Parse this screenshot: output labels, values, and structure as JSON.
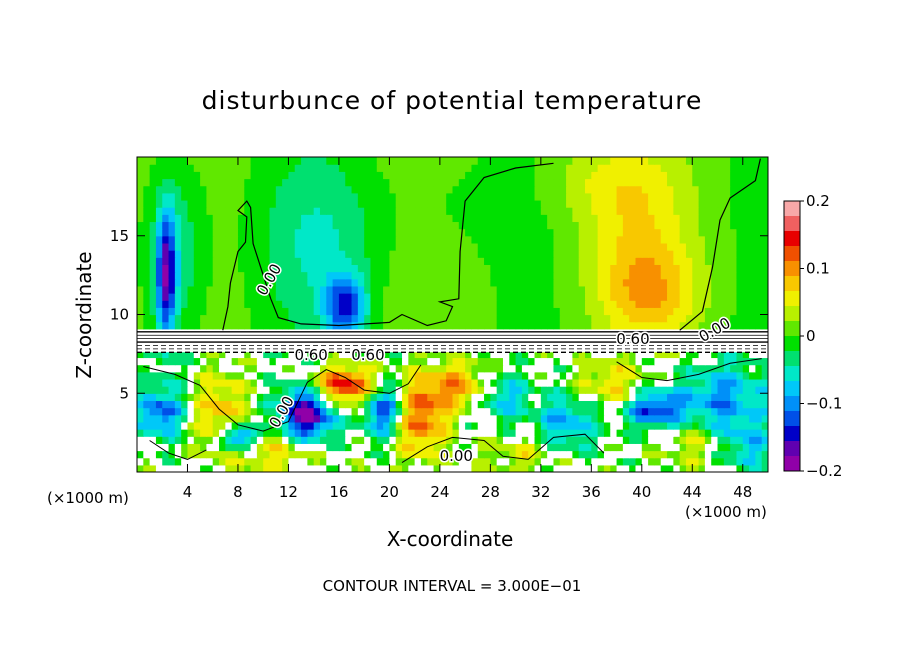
{
  "chart_data": {
    "type": "heatmap",
    "title": "disturbunce of potential temperature",
    "xlabel": "X-coordinate",
    "ylabel": "Z-coordinate",
    "x_unit": "(×1000 m)",
    "y_unit": "(×1000 m)",
    "xlim": [
      0,
      50
    ],
    "ylim": [
      0,
      20
    ],
    "x_ticks": [
      4,
      8,
      12,
      16,
      20,
      24,
      28,
      32,
      36,
      40,
      44,
      48
    ],
    "y_ticks": [
      5,
      10,
      15
    ],
    "colorbar": {
      "min": -0.2,
      "max": 0.2,
      "ticks": [
        0.2,
        0.1,
        0,
        -0.1,
        -0.2
      ],
      "tick_labels": [
        "0.2",
        "0.1",
        "0",
        "−0.1",
        "−0.2"
      ],
      "colors": [
        "#f8a8a8",
        "#f06060",
        "#e80000",
        "#f05000",
        "#f89000",
        "#f8c800",
        "#f0f000",
        "#b8f000",
        "#60e800",
        "#00e000",
        "#00e070",
        "#00e8c8",
        "#00c8f8",
        "#0090f8",
        "#0050e8",
        "#0000c8",
        "#6000b0",
        "#9000a8"
      ]
    },
    "contour_interval_text": "CONTOUR INTERVAL = 3.000E−01",
    "contour_labels": [
      {
        "text": "0.00",
        "x": 10.5,
        "z": 12.2,
        "angle": -60
      },
      {
        "text": "0.60",
        "x": 13.8,
        "z": 7.4
      },
      {
        "text": "0.60",
        "x": 18.3,
        "z": 7.4
      },
      {
        "text": "0.60",
        "x": 39.3,
        "z": 8.4
      },
      {
        "text": "0.00",
        "x": 11.5,
        "z": 3.8,
        "angle": -60
      },
      {
        "text": "0.00",
        "x": 25.3,
        "z": 1.0
      },
      {
        "text": "0.00",
        "x": 45.8,
        "z": 9.0,
        "angle": -30
      }
    ],
    "blobs": [
      {
        "x": 2.3,
        "z": 12.5,
        "rx": 0.8,
        "rz": 4.2,
        "v": -0.16
      },
      {
        "x": 3.4,
        "z": 14.0,
        "rx": 2.3,
        "rz": 6.0,
        "v": -0.05
      },
      {
        "x": 16.5,
        "z": 10.5,
        "rx": 1.6,
        "rz": 2.0,
        "v": -0.13
      },
      {
        "x": 14.5,
        "z": 14.5,
        "rx": 5.0,
        "rz": 5.5,
        "v": -0.045
      },
      {
        "x": 40.5,
        "z": 11.3,
        "rx": 4.0,
        "rz": 3.0,
        "v": 0.07
      },
      {
        "x": 39.5,
        "z": 15.5,
        "rx": 4.5,
        "rz": 4.0,
        "v": 0.04
      },
      {
        "x": 37.0,
        "z": 18.5,
        "rx": 5.5,
        "rz": 2.5,
        "v": 0.03
      },
      {
        "x": 26.0,
        "z": 17.0,
        "rx": 6.0,
        "rz": 3.0,
        "v": -0.015
      },
      {
        "x": 13.5,
        "z": 3.8,
        "rx": 2.2,
        "rz": 1.8,
        "v": -0.19
      },
      {
        "x": 19.5,
        "z": 4.2,
        "rx": 1.6,
        "rz": 1.8,
        "v": -0.14
      },
      {
        "x": 1.8,
        "z": 3.8,
        "rx": 1.8,
        "rz": 1.6,
        "v": -0.12
      },
      {
        "x": 8.0,
        "z": 2.2,
        "rx": 1.3,
        "rz": 0.8,
        "v": -0.16
      },
      {
        "x": 41.0,
        "z": 4.0,
        "rx": 2.5,
        "rz": 1.2,
        "v": -0.13
      },
      {
        "x": 46.5,
        "z": 4.5,
        "rx": 3.5,
        "rz": 2.5,
        "v": -0.1
      },
      {
        "x": 34.0,
        "z": 3.0,
        "rx": 2.5,
        "rz": 2.0,
        "v": -0.09
      },
      {
        "x": 29.0,
        "z": 4.8,
        "rx": 2.0,
        "rz": 1.5,
        "v": -0.08
      },
      {
        "x": 6.5,
        "z": 4.0,
        "rx": 2.0,
        "rz": 2.5,
        "v": 0.08
      },
      {
        "x": 22.5,
        "z": 3.5,
        "rx": 2.0,
        "rz": 2.5,
        "v": 0.12
      },
      {
        "x": 16.5,
        "z": 5.5,
        "rx": 3.0,
        "rz": 1.3,
        "v": 0.16
      },
      {
        "x": 25.5,
        "z": 5.5,
        "rx": 2.5,
        "rz": 1.5,
        "v": 0.09
      },
      {
        "x": 37.5,
        "z": 5.5,
        "rx": 2.5,
        "rz": 1.5,
        "v": 0.07
      },
      {
        "x": 11.0,
        "z": 1.2,
        "rx": 3.5,
        "rz": 1.2,
        "v": 0.06
      },
      {
        "x": 31.0,
        "z": 1.2,
        "rx": 3.5,
        "rz": 1.2,
        "v": 0.05
      },
      {
        "x": 44.0,
        "z": 2.0,
        "rx": 2.5,
        "rz": 1.5,
        "v": 0.06
      },
      {
        "x": 48.5,
        "z": 1.5,
        "rx": 2.0,
        "rz": 1.5,
        "v": -0.06
      }
    ]
  }
}
